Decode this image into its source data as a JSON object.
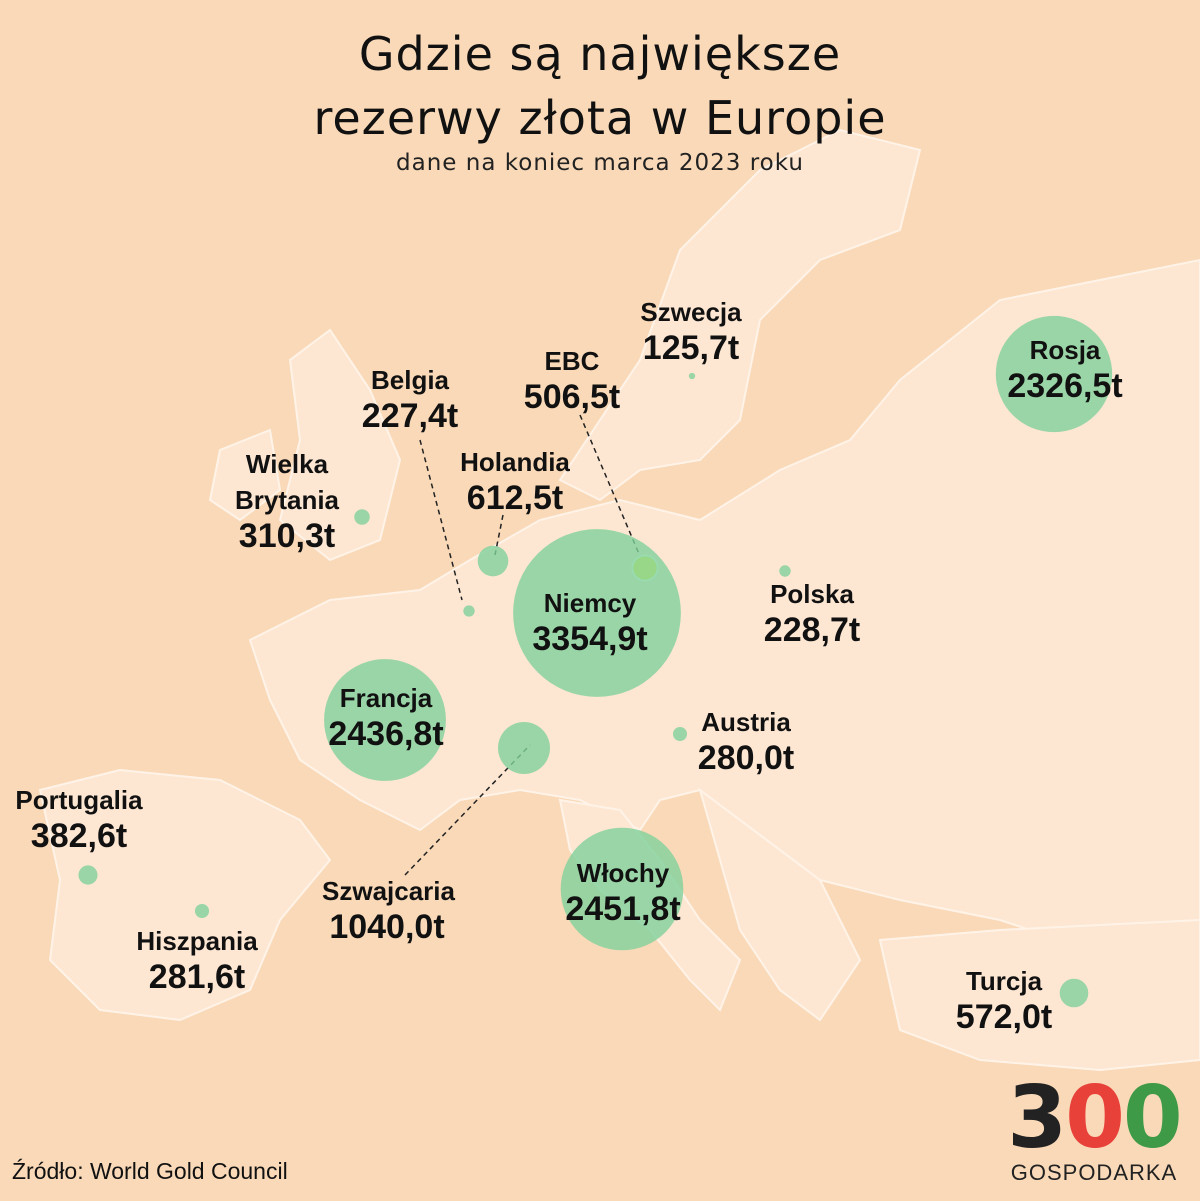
{
  "header": {
    "title_lines": [
      "Gdzie są największe",
      "rezerwy złota w Europie"
    ],
    "subtitle": "dane na koniec marca 2023 roku"
  },
  "countries": [
    {
      "name": "Szwecja",
      "value": 125.7,
      "value_label": "125,7t"
    },
    {
      "name": "Rosja",
      "value": 2326.5,
      "value_label": "2326,5t"
    },
    {
      "name": "EBC",
      "value": 506.5,
      "value_label": "506,5t"
    },
    {
      "name": "Belgia",
      "value": 227.4,
      "value_label": "227,4t"
    },
    {
      "name": "Holandia",
      "value": 612.5,
      "value_label": "612,5t"
    },
    {
      "name": "Wielka Brytania",
      "value": 310.3,
      "value_label": "310,3t"
    },
    {
      "name": "Niemcy",
      "value": 3354.9,
      "value_label": "3354,9t"
    },
    {
      "name": "Polska",
      "value": 228.7,
      "value_label": "228,7t"
    },
    {
      "name": "Francja",
      "value": 2436.8,
      "value_label": "2436,8t"
    },
    {
      "name": "Austria",
      "value": 280.0,
      "value_label": "280,0t"
    },
    {
      "name": "Szwajcaria",
      "value": 1040.0,
      "value_label": "1040,0t"
    },
    {
      "name": "Włochy",
      "value": 2451.8,
      "value_label": "2451,8t"
    },
    {
      "name": "Portugalia",
      "value": 382.6,
      "value_label": "382,6t"
    },
    {
      "name": "Hiszpania",
      "value": 281.6,
      "value_label": "281,6t"
    },
    {
      "name": "Turcja",
      "value": 572.0,
      "value_label": "572,0t"
    }
  ],
  "source": "Źródło: World Gold Council",
  "logo": {
    "digits": [
      "3",
      "0",
      "0"
    ],
    "name": "GOSPODARKA"
  }
}
